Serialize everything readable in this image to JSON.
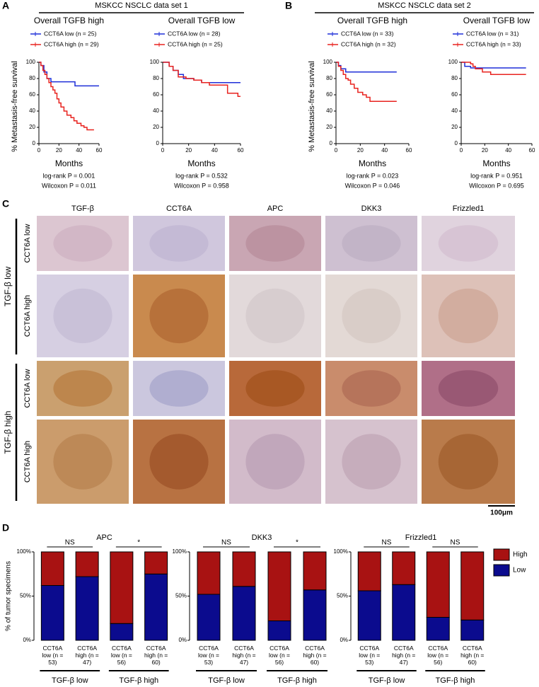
{
  "panels": [
    {
      "label": "A",
      "header": "MSKCC NSCLC data set 1"
    },
    {
      "label": "B",
      "header": "MSKCC NSCLC data set 2"
    },
    {
      "label": "C"
    },
    {
      "label": "D"
    }
  ],
  "ihc": {
    "columns": [
      "TGF-β",
      "CCT6A",
      "APC",
      "DKK3",
      "Frizzled1"
    ],
    "row_groups": [
      {
        "label": "TGF-β low",
        "rows": [
          "CCT6A low",
          "CCT6A high"
        ]
      },
      {
        "label": "TGF-β high",
        "rows": [
          "CCT6A low",
          "CCT6A high"
        ]
      }
    ],
    "scale_bar": "100μm"
  },
  "chart_data": [
    {
      "type": "km",
      "title": "Overall TGFB high",
      "ylabel": "% Metastasis-free survival",
      "xlabel": "Months",
      "xlim": [
        0,
        60
      ],
      "xticks": [
        0,
        20,
        40,
        60
      ],
      "ylim": [
        0,
        100
      ],
      "yticks": [
        0,
        20,
        40,
        60,
        80,
        100
      ],
      "annotations": [
        "log-rank P = 0.001",
        "Wilcoxon P = 0.011"
      ],
      "series": [
        {
          "name": "CCT6A low (n = 25)",
          "color": "#1f2fd8",
          "x": [
            0,
            2,
            5,
            8,
            12,
            36,
            60
          ],
          "values": [
            100,
            96,
            88,
            80,
            76,
            71,
            71
          ]
        },
        {
          "name": "CCT6A high (n = 29)",
          "color": "#e8231f",
          "x": [
            0,
            2,
            4,
            6,
            8,
            10,
            12,
            14,
            16,
            18,
            20,
            22,
            25,
            28,
            32,
            35,
            38,
            42,
            45,
            48,
            55
          ],
          "values": [
            100,
            96,
            90,
            85,
            80,
            75,
            70,
            66,
            62,
            55,
            50,
            45,
            40,
            35,
            32,
            28,
            25,
            22,
            20,
            17,
            17
          ]
        }
      ]
    },
    {
      "type": "km",
      "title": "Overall TGFB low",
      "xlabel": "Months",
      "xlim": [
        0,
        60
      ],
      "xticks": [
        0,
        20,
        40,
        60
      ],
      "ylim": [
        0,
        100
      ],
      "yticks": [
        0,
        20,
        40,
        60,
        80,
        100
      ],
      "annotations": [
        "log-rank P = 0.532",
        "Wilcoxon P = 0.958"
      ],
      "series": [
        {
          "name": "CCT6A low (n = 28)",
          "color": "#1f2fd8",
          "x": [
            0,
            5,
            8,
            12,
            16,
            24,
            30,
            60
          ],
          "values": [
            100,
            95,
            90,
            85,
            80,
            78,
            75,
            75
          ]
        },
        {
          "name": "CCT6A high (n = 25)",
          "color": "#e8231f",
          "x": [
            0,
            5,
            8,
            12,
            18,
            24,
            30,
            36,
            48,
            50,
            58,
            60
          ],
          "values": [
            100,
            95,
            90,
            82,
            80,
            78,
            75,
            72,
            72,
            62,
            58,
            58
          ]
        }
      ]
    },
    {
      "type": "km",
      "title": "Overall TGFB high",
      "ylabel": "% Metastasis-free survival",
      "xlabel": "Months",
      "xlim": [
        0,
        60
      ],
      "xticks": [
        0,
        20,
        40,
        60
      ],
      "ylim": [
        0,
        100
      ],
      "yticks": [
        0,
        20,
        40,
        60,
        80,
        100
      ],
      "annotations": [
        "log-rank P = 0.023",
        "Wilcoxon P = 0.046"
      ],
      "series": [
        {
          "name": "CCT6A low (n = 33)",
          "color": "#1f2fd8",
          "x": [
            0,
            2,
            4,
            8,
            50
          ],
          "values": [
            100,
            96,
            92,
            88,
            88
          ]
        },
        {
          "name": "CCT6A high (n = 32)",
          "color": "#e8231f",
          "x": [
            0,
            2,
            4,
            6,
            8,
            10,
            12,
            15,
            18,
            22,
            25,
            28,
            50
          ],
          "values": [
            100,
            95,
            90,
            85,
            80,
            78,
            73,
            68,
            63,
            60,
            57,
            52,
            52
          ]
        }
      ]
    },
    {
      "type": "km",
      "title": "Overall TGFB low",
      "xlabel": "Months",
      "xlim": [
        0,
        60
      ],
      "xticks": [
        0,
        20,
        40,
        60
      ],
      "ylim": [
        0,
        100
      ],
      "yticks": [
        0,
        20,
        40,
        60,
        80,
        100
      ],
      "annotations": [
        "log-rank P = 0.951",
        "Wilcoxon P = 0.695"
      ],
      "series": [
        {
          "name": "CCT6A low (n = 31)",
          "color": "#1f2fd8",
          "x": [
            0,
            3,
            8,
            55
          ],
          "values": [
            100,
            95,
            93,
            93
          ]
        },
        {
          "name": "CCT6A high (n = 33)",
          "color": "#e8231f",
          "x": [
            0,
            8,
            10,
            12,
            18,
            25,
            55
          ],
          "values": [
            100,
            98,
            95,
            92,
            88,
            85,
            85
          ]
        }
      ]
    },
    {
      "type": "stacked-bar",
      "title": "APC",
      "ylabel": "% of tumor specimens",
      "categories": [
        "CCT6A low (n = 53)",
        "CCT6A high (n = 47)",
        "CCT6A low (n = 56)",
        "CCT6A high (n = 60)"
      ],
      "groups": [
        "TGF-β low",
        "TGF-β high"
      ],
      "significance": [
        "NS",
        "*"
      ],
      "ylim": [
        0,
        100
      ],
      "yticks": [
        {
          "value": 0,
          "label": "0%"
        },
        {
          "value": 50,
          "label": "50%"
        },
        {
          "value": 100,
          "label": "100%"
        }
      ],
      "series": [
        {
          "color": "#0b0b8e",
          "values": [
            62,
            72,
            19,
            75
          ]
        },
        {
          "color": "#a81212",
          "values": [
            38,
            28,
            81,
            25
          ]
        }
      ]
    },
    {
      "type": "stacked-bar",
      "title": "DKK3",
      "categories": [
        "CCT6A low (n = 53)",
        "CCT6A high (n = 47)",
        "CCT6A low (n = 56)",
        "CCT6A high (n = 60)"
      ],
      "groups": [
        "TGF-β low",
        "TGF-β high"
      ],
      "significance": [
        "NS",
        "*"
      ],
      "ylim": [
        0,
        100
      ],
      "yticks": [
        {
          "value": 0,
          "label": "0%"
        },
        {
          "value": 50,
          "label": "50%"
        },
        {
          "value": 100,
          "label": "100%"
        }
      ],
      "series": [
        {
          "color": "#0b0b8e",
          "values": [
            52,
            61,
            22,
            57
          ]
        },
        {
          "color": "#a81212",
          "values": [
            48,
            39,
            78,
            43
          ]
        }
      ]
    },
    {
      "type": "stacked-bar",
      "title": "Frizzled1",
      "legend": true,
      "categories": [
        "CCT6A low (n = 53)",
        "CCT6A high (n = 47)",
        "CCT6A low (n = 56)",
        "CCT6A high (n = 60)"
      ],
      "groups": [
        "TGF-β low",
        "TGF-β high"
      ],
      "significance": [
        "NS",
        "NS"
      ],
      "ylim": [
        0,
        100
      ],
      "yticks": [
        {
          "value": 0,
          "label": "0%"
        },
        {
          "value": 50,
          "label": "50%"
        },
        {
          "value": 100,
          "label": "100%"
        }
      ],
      "series": [
        {
          "name": "Low",
          "color": "#0b0b8e",
          "values": [
            56,
            63,
            26,
            23
          ]
        },
        {
          "name": "High",
          "color": "#a81212",
          "values": [
            44,
            37,
            74,
            77
          ]
        }
      ]
    }
  ]
}
